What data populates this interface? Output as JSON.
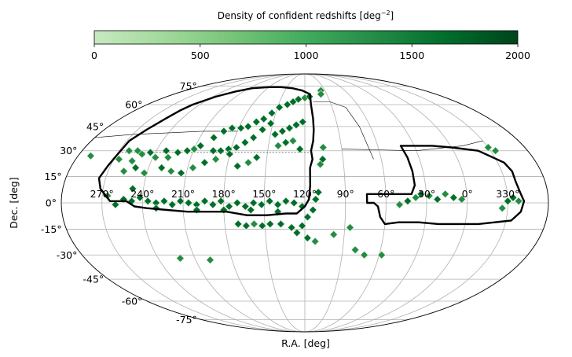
{
  "chart_data": {
    "type": "heatmap",
    "projection": "mollweide",
    "colorbar": {
      "label": "Density of confident redshifts [deg",
      "label_exponent": "−2",
      "label_end": "]",
      "ticks": [
        "0",
        "500",
        "1000",
        "1500",
        "2000"
      ],
      "range": [
        0,
        2000
      ],
      "colormap": "Greens",
      "colors": [
        "#c7e9c0",
        "#a1d99b",
        "#74c476",
        "#41ab5d",
        "#238b45",
        "#006d2c",
        "#00441b"
      ]
    },
    "xlabel": "R.A. [deg]",
    "ylabel": "Dec. [deg]",
    "ra_ticks": [
      {
        "ra": 270,
        "label": "270°"
      },
      {
        "ra": 240,
        "label": "240°"
      },
      {
        "ra": 210,
        "label": "210°"
      },
      {
        "ra": 180,
        "label": "180°"
      },
      {
        "ra": 150,
        "label": "150°"
      },
      {
        "ra": 120,
        "label": "120°"
      },
      {
        "ra": 90,
        "label": "90°"
      },
      {
        "ra": 60,
        "label": "60°"
      },
      {
        "ra": 30,
        "label": "30°"
      },
      {
        "ra": 0,
        "label": "0°"
      },
      {
        "ra": 330,
        "label": "330°"
      }
    ],
    "dec_ticks": [
      {
        "dec": 75,
        "label": "75°"
      },
      {
        "dec": 60,
        "label": "60°"
      },
      {
        "dec": 45,
        "label": "45°"
      },
      {
        "dec": 30,
        "label": "30°"
      },
      {
        "dec": 15,
        "label": "15°"
      },
      {
        "dec": 0,
        "label": "0°"
      },
      {
        "dec": -15,
        "label": "-15°"
      },
      {
        "dec": -30,
        "label": "-30°"
      },
      {
        "dec": -45,
        "label": "-45°"
      },
      {
        "dec": -60,
        "label": "-60°"
      },
      {
        "dec": -75,
        "label": "-75°"
      }
    ],
    "ra_center": 120,
    "grid": true,
    "footprint_outline_ngc": [
      [
        268,
        36
      ],
      [
        262,
        43
      ],
      [
        256,
        50
      ],
      [
        252,
        56
      ],
      [
        248,
        60
      ],
      [
        236,
        66
      ],
      [
        222,
        70
      ],
      [
        205,
        73
      ],
      [
        180,
        74
      ],
      [
        160,
        74
      ],
      [
        140,
        73
      ],
      [
        124,
        71
      ],
      [
        113,
        68
      ],
      [
        113,
        60
      ],
      [
        112,
        50
      ],
      [
        112,
        43
      ],
      [
        113,
        36
      ],
      [
        115,
        30
      ],
      [
        114,
        25
      ],
      [
        116,
        20
      ],
      [
        116,
        10
      ],
      [
        117,
        2
      ],
      [
        120,
        -2
      ],
      [
        126,
        -6
      ],
      [
        134,
        -6
      ],
      [
        148,
        -7
      ],
      [
        163,
        -7
      ],
      [
        178,
        -5
      ],
      [
        192,
        -5
      ],
      [
        207,
        -5
      ],
      [
        222,
        -4
      ],
      [
        237,
        -3
      ],
      [
        246,
        -2
      ],
      [
        252,
        1
      ],
      [
        264,
        1
      ],
      [
        272,
        8
      ],
      [
        275,
        14
      ],
      [
        272,
        21
      ],
      [
        270,
        26
      ],
      [
        268,
        36
      ]
    ],
    "footprint_outline_sgc": [
      [
        41,
        33
      ],
      [
        30,
        33
      ],
      [
        15,
        33
      ],
      [
        0,
        32
      ],
      [
        340,
        30
      ],
      [
        325,
        23
      ],
      [
        322,
        18
      ],
      [
        322,
        12
      ],
      [
        320,
        5
      ],
      [
        318,
        1
      ],
      [
        320,
        -5
      ],
      [
        326,
        -10
      ],
      [
        338,
        -11
      ],
      [
        350,
        -12
      ],
      [
        5,
        -12
      ],
      [
        20,
        -12
      ],
      [
        35,
        -11
      ],
      [
        50,
        -11
      ],
      [
        60,
        -12
      ],
      [
        64,
        -8
      ],
      [
        66,
        -2
      ],
      [
        69,
        0
      ],
      [
        74,
        0
      ],
      [
        74,
        5
      ],
      [
        58,
        5
      ],
      [
        48,
        5
      ],
      [
        41,
        5
      ],
      [
        38,
        10
      ],
      [
        38,
        18
      ],
      [
        39,
        26
      ],
      [
        41,
        33
      ]
    ],
    "thin_outline": [
      [
        90,
        31
      ],
      [
        30,
        30
      ],
      [
        -10,
        33
      ],
      [
        -30,
        36
      ],
      [
        -60,
        38
      ],
      [
        -90,
        40
      ],
      [
        -120,
        41
      ],
      [
        -150,
        42
      ],
      [
        -180,
        42
      ]
    ],
    "galactic_plane": [
      [
        66,
        25
      ],
      [
        70,
        45
      ],
      [
        75,
        58
      ],
      [
        90,
        62
      ],
      [
        110,
        62
      ]
    ],
    "dashed_line_dec": 29,
    "dashed_line_ra_range": [
      117,
      268
    ],
    "density_points": [
      [
        262,
        30,
        0.7
      ],
      [
        255,
        30,
        0.6
      ],
      [
        250,
        28,
        0.7
      ],
      [
        244,
        29,
        0.8
      ],
      [
        238,
        26,
        0.7
      ],
      [
        232,
        30,
        0.8
      ],
      [
        228,
        26,
        0.7
      ],
      [
        222,
        29,
        0.8
      ],
      [
        215,
        30,
        0.8
      ],
      [
        210,
        31,
        0.7
      ],
      [
        206,
        33,
        0.8
      ],
      [
        198,
        38,
        0.8
      ],
      [
        192,
        42,
        0.9
      ],
      [
        186,
        44,
        0.9
      ],
      [
        178,
        44,
        0.8
      ],
      [
        172,
        45,
        0.9
      ],
      [
        166,
        48,
        0.8
      ],
      [
        160,
        50,
        0.9
      ],
      [
        154,
        54,
        0.8
      ],
      [
        148,
        58,
        0.9
      ],
      [
        140,
        60,
        0.8
      ],
      [
        134,
        62,
        0.8
      ],
      [
        128,
        64,
        0.9
      ],
      [
        120,
        65,
        0.7
      ],
      [
        114,
        66,
        0.8
      ],
      [
        152,
        47,
        0.8
      ],
      [
        158,
        43,
        0.8
      ],
      [
        164,
        38,
        0.9
      ],
      [
        170,
        35,
        0.8
      ],
      [
        176,
        32,
        0.8
      ],
      [
        182,
        31,
        0.9
      ],
      [
        188,
        30,
        0.8
      ],
      [
        194,
        30,
        0.8
      ],
      [
        146,
        40,
        0.8
      ],
      [
        140,
        42,
        0.9
      ],
      [
        134,
        44,
        0.8
      ],
      [
        128,
        46,
        0.9
      ],
      [
        122,
        48,
        0.8
      ],
      [
        142,
        33,
        0.7
      ],
      [
        136,
        35,
        0.8
      ],
      [
        130,
        36,
        0.7
      ],
      [
        124,
        31,
        0.8
      ],
      [
        230,
        20,
        0.8
      ],
      [
        222,
        18,
        0.7
      ],
      [
        214,
        17,
        0.8
      ],
      [
        206,
        20,
        0.7
      ],
      [
        198,
        23,
        0.8
      ],
      [
        190,
        25,
        0.7
      ],
      [
        180,
        28,
        0.8
      ],
      [
        172,
        21,
        0.8
      ],
      [
        164,
        23,
        0.7
      ],
      [
        158,
        26,
        0.8
      ],
      [
        258,
        18,
        0.7
      ],
      [
        250,
        20,
        0.8
      ],
      [
        242,
        17,
        0.7
      ],
      [
        248,
        8,
        0.8
      ],
      [
        254,
        2,
        0.9
      ],
      [
        248,
        1,
        0.9
      ],
      [
        242,
        3,
        0.8
      ],
      [
        236,
        1,
        0.9
      ],
      [
        230,
        0,
        0.9
      ],
      [
        224,
        1,
        0.9
      ],
      [
        218,
        -1,
        0.9
      ],
      [
        212,
        1,
        0.8
      ],
      [
        206,
        0,
        0.9
      ],
      [
        200,
        -1,
        0.8
      ],
      [
        194,
        1,
        0.9
      ],
      [
        188,
        -1,
        0.9
      ],
      [
        182,
        1,
        0.8
      ],
      [
        176,
        -2,
        0.9
      ],
      [
        170,
        0,
        0.9
      ],
      [
        164,
        -2,
        0.9
      ],
      [
        158,
        0,
        0.8
      ],
      [
        152,
        -1,
        0.9
      ],
      [
        146,
        1,
        0.9
      ],
      [
        140,
        -1,
        0.8
      ],
      [
        134,
        1,
        0.9
      ],
      [
        128,
        0,
        0.8
      ],
      [
        122,
        -2,
        0.9
      ],
      [
        260,
        -1,
        0.8
      ],
      [
        266,
        4,
        0.7
      ],
      [
        230,
        -3,
        0.8
      ],
      [
        200,
        -4,
        0.8
      ],
      [
        180,
        -4,
        0.9
      ],
      [
        160,
        -4,
        0.8
      ],
      [
        140,
        -5,
        0.8
      ],
      [
        170,
        -12,
        0.8
      ],
      [
        164,
        -13,
        0.8
      ],
      [
        158,
        -12,
        0.7
      ],
      [
        152,
        -13,
        0.8
      ],
      [
        146,
        -12,
        0.8
      ],
      [
        138,
        -12,
        0.8
      ],
      [
        130,
        -14,
        0.8
      ],
      [
        122,
        -13,
        0.9
      ],
      [
        118,
        -8,
        0.8
      ],
      [
        114,
        -4,
        0.9
      ],
      [
        112,
        2,
        0.8
      ],
      [
        110,
        6,
        0.8
      ],
      [
        126,
        -17,
        0.8
      ],
      [
        118,
        -20,
        0.8
      ],
      [
        112,
        -22,
        0.7
      ],
      [
        98,
        -18,
        0.7
      ],
      [
        86,
        -14,
        0.7
      ],
      [
        80,
        -27,
        0.7
      ],
      [
        72,
        -30,
        0.6
      ],
      [
        58,
        -30,
        0.6
      ],
      [
        198,
        -33,
        0.7
      ],
      [
        222,
        -32,
        0.7
      ],
      [
        105,
        32,
        0.7
      ],
      [
        106,
        25,
        0.8
      ],
      [
        108,
        22,
        0.7
      ],
      [
        255,
        24,
        0.7
      ],
      [
        266,
        25,
        0.6
      ],
      [
        96,
        71,
        0.6
      ],
      [
        98,
        68,
        0.6
      ],
      [
        38,
        3,
        0.7
      ],
      [
        34,
        5,
        0.8
      ],
      [
        28,
        4,
        0.7
      ],
      [
        22,
        2,
        0.8
      ],
      [
        16,
        5,
        0.7
      ],
      [
        10,
        3,
        0.8
      ],
      [
        4,
        2,
        0.7
      ],
      [
        44,
        1,
        0.8
      ],
      [
        50,
        -1,
        0.7
      ],
      [
        326,
        3,
        0.8
      ],
      [
        330,
        1,
        0.8
      ],
      [
        334,
        -3,
        0.7
      ],
      [
        322,
        1,
        0.7
      ],
      [
        330,
        32,
        0.6
      ],
      [
        326,
        30,
        0.6
      ],
      [
        290,
        27,
        0.6
      ]
    ]
  }
}
